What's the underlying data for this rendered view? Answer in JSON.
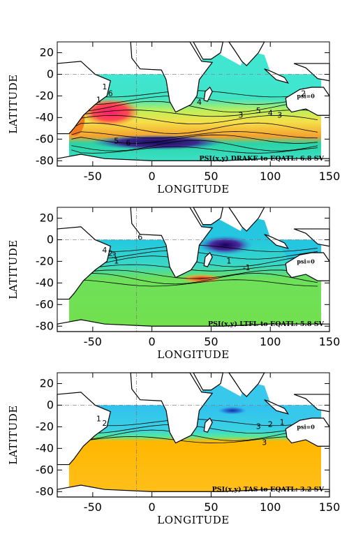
{
  "chart_data": [
    {
      "type": "heatmap",
      "title": "",
      "xlabel": "LONGITUDE",
      "ylabel": "LATITUDE",
      "xlim": [
        -80,
        150
      ],
      "ylim": [
        -85,
        30
      ],
      "xticks": [
        "-50",
        "0",
        "50",
        "100",
        "150"
      ],
      "yticks": [
        "20",
        "0",
        "-20",
        "-40",
        "-60",
        "-80"
      ],
      "annotation": "PSI(x,y) DRAKE to EQATL: 6.8 SV",
      "land_label": "psi=0",
      "contour_labels": [
        "1",
        "6",
        "5",
        "4",
        "3",
        "2",
        "1",
        "6",
        "5",
        "4",
        "3"
      ],
      "colors": {
        "low": "#3ee8d0",
        "mid": "#f2e34a",
        "high": "#ff2a6a",
        "band": "#3a2a7a"
      }
    },
    {
      "type": "heatmap",
      "title": "",
      "xlabel": "LONGITUDE",
      "ylabel": "LATITUDE",
      "xlim": [
        -80,
        150
      ],
      "ylim": [
        -85,
        30
      ],
      "xticks": [
        "-50",
        "0",
        "50",
        "100",
        "150"
      ],
      "yticks": [
        "20",
        "0",
        "-20",
        "-40",
        "-60",
        "-80"
      ],
      "annotation": "PSI(x,y) LTFL to EQATL: 5.8 SV",
      "land_label": "psi=0",
      "contour_labels": [
        "6",
        "2",
        "4",
        "3",
        "1",
        "-1",
        "1"
      ],
      "colors": {
        "low": "#4fe07a",
        "mid": "#23c9d8",
        "high": "#2a1070",
        "band": "#d25a2a"
      }
    },
    {
      "type": "heatmap",
      "title": "",
      "xlabel": "LONGITUDE",
      "ylabel": "LATITUDE",
      "xlim": [
        -80,
        150
      ],
      "ylim": [
        -85,
        30
      ],
      "xticks": [
        "-50",
        "0",
        "50",
        "100",
        "150"
      ],
      "yticks": [
        "20",
        "0",
        "-20",
        "-40",
        "-60",
        "-80"
      ],
      "annotation": "PSI(x,y) TAS to EQATL: 3.2 SV",
      "land_label": "psi=0",
      "contour_labels": [
        "1",
        "2",
        "3",
        "2",
        "1",
        "3"
      ],
      "colors": {
        "low": "#33c6ec",
        "mid": "#2ee3b0",
        "high": "#ffb000",
        "band": "#ffc200"
      }
    }
  ]
}
